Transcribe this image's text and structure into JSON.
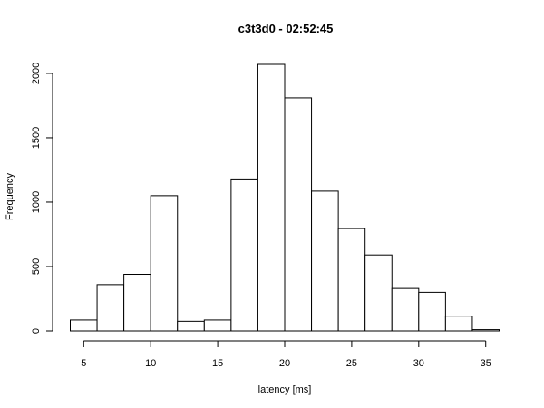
{
  "chart_data": {
    "type": "bar",
    "title": "c3t3d0 - 02:52:45",
    "xlabel": "latency [ms]",
    "ylabel": "Frequency",
    "bin_width": 2,
    "bins": [
      {
        "start": 4,
        "end": 6,
        "value": 85
      },
      {
        "start": 6,
        "end": 8,
        "value": 360
      },
      {
        "start": 8,
        "end": 10,
        "value": 440
      },
      {
        "start": 10,
        "end": 12,
        "value": 1050
      },
      {
        "start": 12,
        "end": 14,
        "value": 75
      },
      {
        "start": 14,
        "end": 16,
        "value": 85
      },
      {
        "start": 16,
        "end": 18,
        "value": 1180
      },
      {
        "start": 18,
        "end": 20,
        "value": 2070
      },
      {
        "start": 20,
        "end": 22,
        "value": 1810
      },
      {
        "start": 22,
        "end": 24,
        "value": 1085
      },
      {
        "start": 24,
        "end": 26,
        "value": 795
      },
      {
        "start": 26,
        "end": 28,
        "value": 590
      },
      {
        "start": 28,
        "end": 30,
        "value": 330
      },
      {
        "start": 30,
        "end": 32,
        "value": 300
      },
      {
        "start": 32,
        "end": 34,
        "value": 115
      },
      {
        "start": 34,
        "end": 36,
        "value": 10
      }
    ],
    "xlim": [
      4,
      36
    ],
    "ylim": [
      0,
      2070
    ],
    "xticks": [
      5,
      10,
      15,
      20,
      25,
      30,
      35
    ],
    "yticks": [
      0,
      500,
      1000,
      1500,
      2000
    ],
    "grid": false
  }
}
